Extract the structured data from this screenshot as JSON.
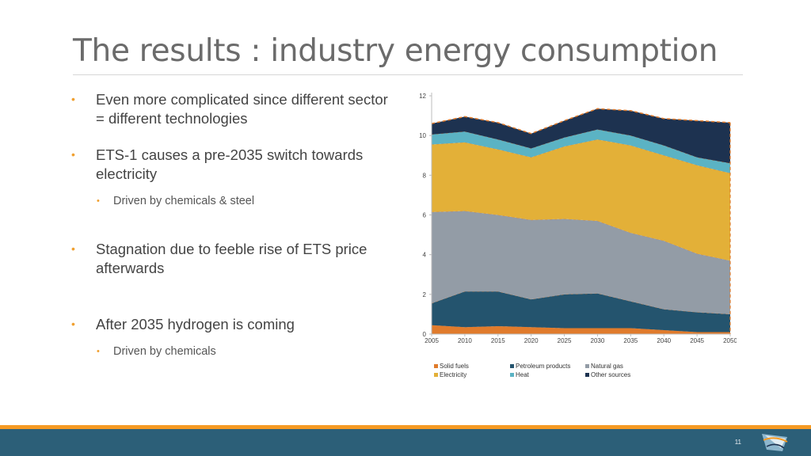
{
  "slide": {
    "title": "The results : industry energy consumption",
    "page_number": "11",
    "bullets": [
      {
        "text": "Even more complicated since different sector = different technologies"
      },
      {
        "text": "ETS-1 causes a pre-2035 switch towards electricity"
      },
      {
        "text": "Driven by chemicals & steel"
      },
      {
        "text": "Stagnation due to feeble rise of ETS price afterwards"
      },
      {
        "text": "After 2035 hydrogen is coming"
      },
      {
        "text": "Driven by chemicals"
      }
    ]
  },
  "colors": {
    "title": "#6b6b6b",
    "bullet_marker": "#f0a030",
    "footer_orange": "#f59a23",
    "footer_blue": "#2c5f78"
  },
  "chart_data": {
    "type": "area",
    "stacked": true,
    "x": [
      2005,
      2010,
      2015,
      2020,
      2025,
      2030,
      2035,
      2040,
      2045,
      2050
    ],
    "ylim": [
      0,
      12
    ],
    "yticks": [
      0,
      2,
      4,
      6,
      8,
      10,
      12
    ],
    "grid": false,
    "legend_position": "bottom",
    "series": [
      {
        "name": "Solid fuels",
        "color": "#e07b2c",
        "values": [
          0.45,
          0.35,
          0.4,
          0.35,
          0.3,
          0.3,
          0.3,
          0.2,
          0.1,
          0.1
        ]
      },
      {
        "name": "Petroleum products",
        "color": "#24546e",
        "values": [
          1.1,
          1.8,
          1.75,
          1.4,
          1.7,
          1.75,
          1.35,
          1.05,
          1.0,
          0.9
        ]
      },
      {
        "name": "Natural gas",
        "color": "#939ca6",
        "values": [
          4.6,
          4.05,
          3.85,
          4.0,
          3.8,
          3.65,
          3.45,
          3.45,
          2.95,
          2.7
        ]
      },
      {
        "name": "Electricity",
        "color": "#e3b038",
        "values": [
          3.4,
          3.45,
          3.3,
          3.15,
          3.65,
          4.1,
          4.4,
          4.3,
          4.45,
          4.4
        ]
      },
      {
        "name": "Heat",
        "color": "#5bb3c4",
        "values": [
          0.5,
          0.55,
          0.5,
          0.45,
          0.45,
          0.5,
          0.5,
          0.5,
          0.4,
          0.5
        ]
      },
      {
        "name": "Other sources",
        "color": "#1d3250",
        "values": [
          0.55,
          0.75,
          0.85,
          0.75,
          0.85,
          1.05,
          1.25,
          1.35,
          1.85,
          2.05
        ]
      }
    ]
  }
}
